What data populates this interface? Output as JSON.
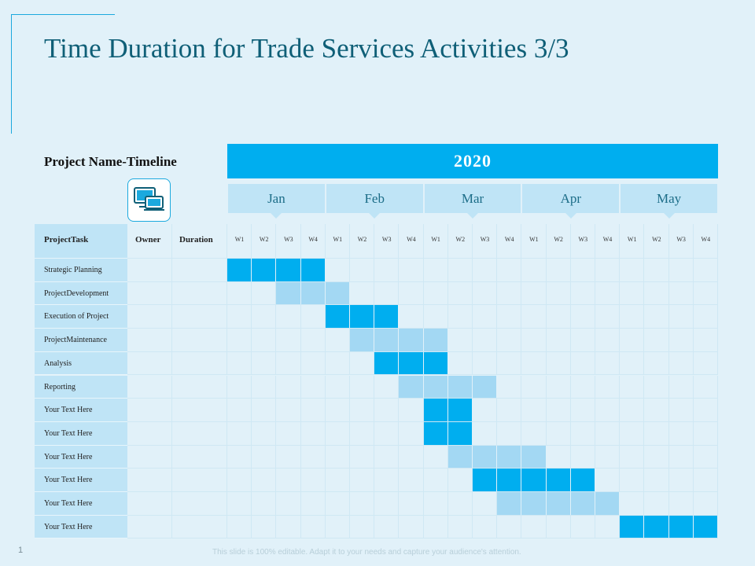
{
  "title": "Time Duration for Trade Services Activities 3/3",
  "colors": {
    "dark": "#00aeef",
    "light": "#a3d8f3",
    "band": "#bfe4f6",
    "bg": "#e1f1f9"
  },
  "chart_data": {
    "type": "gantt",
    "label": "Project Name-Timeline",
    "year": "2020",
    "months": [
      "Jan",
      "Feb",
      "Mar",
      "Apr",
      "May"
    ],
    "week_labels": [
      "W1",
      "W2",
      "W3",
      "W4"
    ],
    "columns": {
      "task": "ProjectTask",
      "owner": "Owner",
      "duration": "Duration"
    },
    "tasks": [
      {
        "name": "Strategic Planning",
        "start": 0,
        "length": 4,
        "shade": "dark"
      },
      {
        "name": "ProjectDevelopment",
        "start": 2,
        "length": 3,
        "shade": "light"
      },
      {
        "name": "Execution of Project",
        "start": 4,
        "length": 3,
        "shade": "dark"
      },
      {
        "name": "ProjectMaintenance",
        "start": 5,
        "length": 4,
        "shade": "light"
      },
      {
        "name": "Analysis",
        "start": 6,
        "length": 3,
        "shade": "dark"
      },
      {
        "name": "Reporting",
        "start": 7,
        "length": 4,
        "shade": "light"
      },
      {
        "name": "Your Text Here",
        "start": 8,
        "length": 2,
        "shade": "dark"
      },
      {
        "name": "Your Text Here",
        "start": 8,
        "length": 2,
        "shade": "dark"
      },
      {
        "name": "Your Text Here",
        "start": 9,
        "length": 4,
        "shade": "light"
      },
      {
        "name": "Your Text Here",
        "start": 10,
        "length": 5,
        "shade": "dark"
      },
      {
        "name": "Your Text Here",
        "start": 11,
        "length": 5,
        "shade": "light"
      },
      {
        "name": "Your Text Here",
        "start": 16,
        "length": 4,
        "shade": "dark"
      }
    ]
  },
  "footer": "This slide is 100% editable. Adapt it to your needs and capture your audience's attention.",
  "page_number": "1"
}
